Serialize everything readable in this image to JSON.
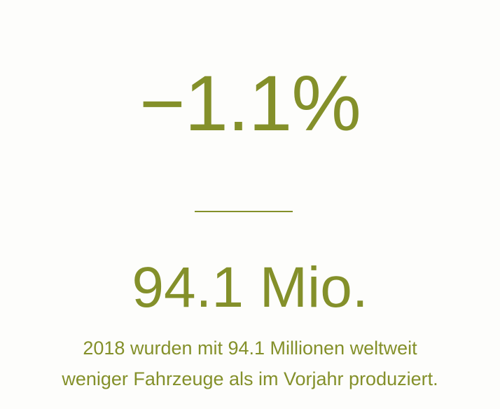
{
  "headline_change": "−1.1%",
  "production_value": "94.1 Mio.",
  "description_line1": "2018 wurden mit 94.1 Millionen weltweit",
  "description_line2": "weniger Fahrzeuge als im Vorjahr produziert.",
  "colors": {
    "accent": "#84902a",
    "background": "#fdfdfb"
  }
}
